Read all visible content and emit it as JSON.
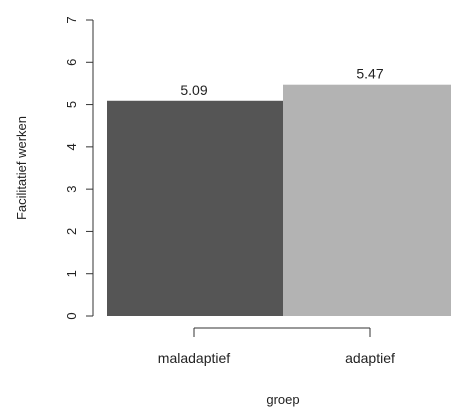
{
  "chart_data": {
    "type": "bar",
    "categories": [
      "maladaptief",
      "adaptief"
    ],
    "values": [
      5.09,
      5.47
    ],
    "data_labels": [
      "5.09",
      "5.47"
    ],
    "xlabel": "groep",
    "ylabel": "Facilitatief werken",
    "ylim": [
      0,
      7
    ],
    "yticks": [
      "0",
      "1",
      "2",
      "3",
      "4",
      "5",
      "6",
      "7"
    ],
    "colors": [
      "#555555",
      "#b3b3b3"
    ],
    "grid": false,
    "legend": "none"
  }
}
